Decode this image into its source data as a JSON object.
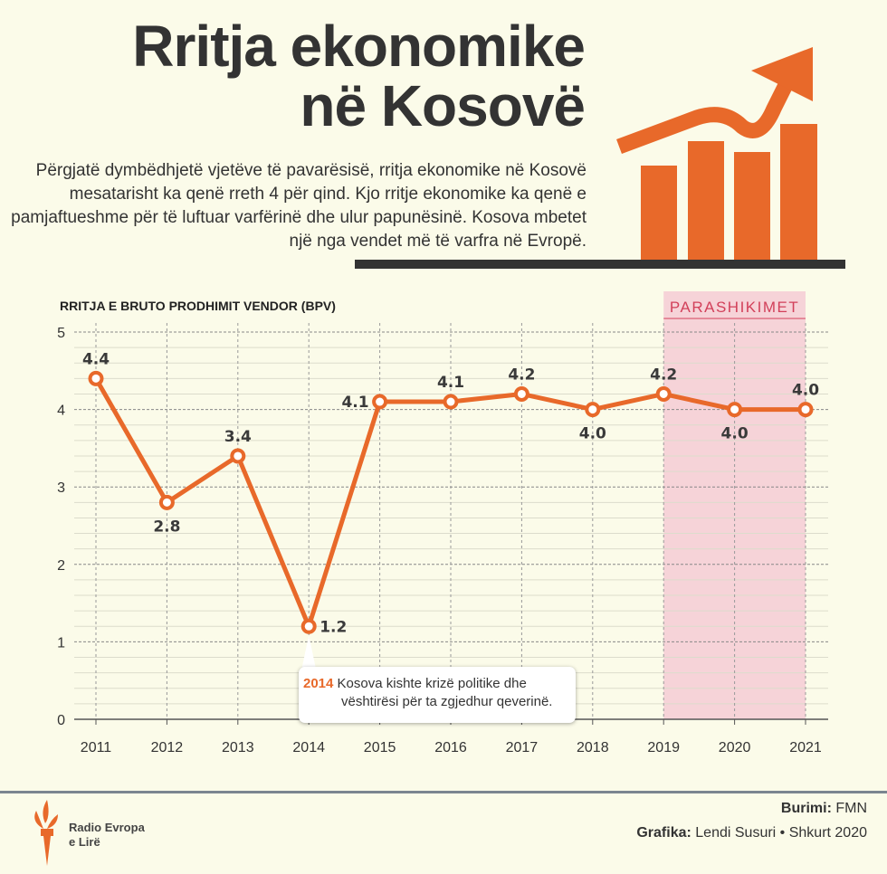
{
  "header": {
    "title_line1": "Rritja ekonomike",
    "title_line2": "në Kosovë",
    "intro": "Përgjatë dymbëdhjetë vjetëve të pavarësisë, rritja ekonomike në Kosovë mesatarisht ka qenë rreth 4 për qind. Kjo rritje ekonomike ka qenë e pamjaftueshme për të luftuar varfërinë  dhe ulur papunësinë. Kosova mbetet një nga vendet më të varfra në Evropë."
  },
  "colors": {
    "accent": "#e8692a",
    "background": "#fbfbe9",
    "text": "#333333",
    "forecast_band": "#f6d3d8",
    "forecast_label": "#d2405a"
  },
  "chart_data": {
    "type": "line",
    "title": "RRITJA E BRUTO PRODHIMIT VENDOR (BPV)",
    "x": [
      "2011",
      "2012",
      "2013",
      "2014",
      "2015",
      "2016",
      "2017",
      "2018",
      "2019",
      "2020",
      "2021"
    ],
    "values": [
      4.4,
      2.8,
      3.4,
      1.2,
      4.1,
      4.1,
      4.2,
      4.0,
      4.2,
      4.0,
      4.0
    ],
    "data_labels": [
      "4.4",
      "2.8",
      "3.4",
      "1.2",
      "4.1",
      "4.1",
      "4.2",
      "4.0",
      "4.2",
      "4.0",
      "4.0"
    ],
    "label_placement": [
      "above",
      "below",
      "above",
      "right",
      "left",
      "above",
      "above",
      "below",
      "above",
      "below",
      "above"
    ],
    "ylim": [
      0,
      5
    ],
    "yticks": [
      "0",
      "1",
      "2",
      "3",
      "4",
      "5"
    ],
    "grid": true,
    "forecast": {
      "label": "PARASHIKIMET",
      "from": "2019",
      "to": "2021"
    },
    "annotation": {
      "year": "2014",
      "line1": "Kosova kishte krizë politike dhe",
      "line2": "vështirësi për ta zgjedhur qeverinë."
    }
  },
  "footer": {
    "source_label": "Burimi:",
    "source": "FMN",
    "graphics_label": "Grafika:",
    "graphics": "Lendi Susuri • Shkurt 2020",
    "logo_line1": "Radio Evropa",
    "logo_line2": "e Lirë"
  }
}
